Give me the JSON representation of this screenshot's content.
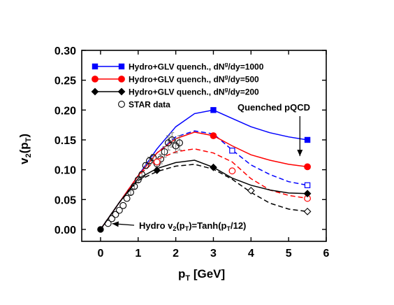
{
  "chart_data": {
    "type": "line",
    "xlabel": "p",
    "xlabel_sub": "T",
    "xlabel_unit": " [GeV]",
    "ylabel": "v",
    "ylabel_sub1": "2",
    "ylabel_mid": "(p",
    "ylabel_sub2": "T",
    "ylabel_end": ")",
    "xlim": [
      -0.5,
      6
    ],
    "ylim": [
      -0.02,
      0.3
    ],
    "xticks": [
      0,
      1,
      2,
      3,
      4,
      5,
      6
    ],
    "xtick_labels": [
      "0",
      "1",
      "2",
      "3",
      "4",
      "5",
      "6"
    ],
    "yticks": [
      0.0,
      0.05,
      0.1,
      0.15,
      0.2,
      0.25,
      0.3
    ],
    "ytick_labels": [
      "0.00",
      "0.05",
      "0.10",
      "0.15",
      "0.20",
      "0.25",
      "0.30"
    ],
    "grid": false,
    "legend_placement": "top-left",
    "legend": [
      {
        "pre": "Hydro+GLV quench., dN",
        "sup": "g",
        "post": "/dy=1000",
        "color": "#0000ff",
        "marker": "square"
      },
      {
        "pre": "Hydro+GLV quench., dN",
        "sup": "g",
        "post": "/dy=500",
        "color": "#ff0000",
        "marker": "circle"
      },
      {
        "pre": "Hydro+GLV quench., dN",
        "sup": "g",
        "post": "/dy=200",
        "color": "#000000",
        "marker": "diamond"
      },
      {
        "pre": "STAR data",
        "sup": "",
        "post": "",
        "color": "#000000",
        "marker": "open-circle"
      }
    ],
    "series": [
      {
        "key": "dNg1000",
        "color": "#0000ff",
        "marker": "square",
        "solid": {
          "x": [
            0,
            0.5,
            1.0,
            1.5,
            2.0,
            2.5,
            3.0,
            3.5,
            4.0,
            4.5,
            5.0,
            5.5
          ],
          "y": [
            0,
            0.045,
            0.09,
            0.135,
            0.172,
            0.194,
            0.2,
            0.186,
            0.172,
            0.162,
            0.155,
            0.15
          ]
        },
        "solid_markers": {
          "x": [
            3.0,
            5.5
          ],
          "y": [
            0.2,
            0.15
          ]
        },
        "dashed": {
          "x": [
            0,
            0.5,
            1.0,
            1.5,
            2.0,
            2.5,
            3.0,
            3.5,
            4.0,
            4.5,
            5.0,
            5.5
          ],
          "y": [
            0,
            0.045,
            0.09,
            0.128,
            0.155,
            0.165,
            0.16,
            0.133,
            0.108,
            0.092,
            0.08,
            0.074
          ]
        },
        "open_markers": {
          "x": [
            3.5,
            5.5
          ],
          "y": [
            0.132,
            0.074
          ]
        }
      },
      {
        "key": "dNg500",
        "color": "#ff0000",
        "marker": "circle",
        "solid": {
          "x": [
            0,
            0.5,
            1.0,
            1.5,
            2.0,
            2.5,
            3.0,
            3.5,
            4.0,
            4.5,
            5.0,
            5.5
          ],
          "y": [
            0,
            0.045,
            0.09,
            0.128,
            0.152,
            0.163,
            0.157,
            0.14,
            0.125,
            0.116,
            0.109,
            0.105
          ]
        },
        "solid_markers": {
          "x": [
            3.0,
            5.5
          ],
          "y": [
            0.157,
            0.105
          ]
        },
        "dashed": {
          "x": [
            0,
            0.5,
            1.0,
            1.5,
            2.0,
            2.5,
            3.0,
            3.5,
            4.0,
            4.5,
            5.0,
            5.5
          ],
          "y": [
            0,
            0.045,
            0.09,
            0.117,
            0.13,
            0.135,
            0.128,
            0.113,
            0.085,
            0.066,
            0.057,
            0.052
          ]
        },
        "open_markers": {
          "x": [
            1.5,
            3.5,
            5.5
          ],
          "y": [
            0.113,
            0.098,
            0.052
          ]
        }
      },
      {
        "key": "dNg200",
        "color": "#000000",
        "marker": "diamond",
        "solid": {
          "x": [
            0,
            0.5,
            1.0,
            1.5,
            2.0,
            2.5,
            3.0,
            3.5,
            4.0,
            4.5,
            5.0,
            5.5
          ],
          "y": [
            0,
            0.045,
            0.085,
            0.102,
            0.112,
            0.116,
            0.104,
            0.086,
            0.074,
            0.066,
            0.061,
            0.06
          ]
        },
        "solid_markers": {
          "x": [
            1.5,
            3.0,
            5.5
          ],
          "y": [
            0.099,
            0.104,
            0.06
          ]
        },
        "dashed": {
          "x": [
            0,
            0.5,
            1.0,
            1.5,
            2.0,
            2.5,
            3.0,
            3.5,
            4.0,
            4.5,
            5.0,
            5.5
          ],
          "y": [
            0,
            0.045,
            0.082,
            0.097,
            0.106,
            0.109,
            0.101,
            0.084,
            0.062,
            0.044,
            0.034,
            0.03
          ]
        },
        "open_markers": {
          "x": [
            4.0,
            5.5
          ],
          "y": [
            0.065,
            0.03
          ]
        }
      },
      {
        "key": "hydro",
        "color": "#000000",
        "marker": "filled-circle",
        "points": {
          "x": [
            0
          ],
          "y": [
            0
          ]
        }
      }
    ],
    "star_data": {
      "x": [
        0.2,
        0.3,
        0.4,
        0.5,
        0.6,
        0.7,
        0.8,
        0.9,
        1.0,
        1.1,
        1.2,
        1.3,
        1.4,
        1.5,
        1.6,
        1.7,
        1.8,
        1.9,
        2.0,
        2.1
      ],
      "y": [
        0.01,
        0.018,
        0.025,
        0.032,
        0.04,
        0.052,
        0.062,
        0.072,
        0.083,
        0.092,
        0.107,
        0.115,
        0.12,
        0.11,
        0.118,
        0.13,
        0.145,
        0.15,
        0.14,
        0.145
      ],
      "err": [
        0.002,
        0.002,
        0.003,
        0.003,
        0.003,
        0.003,
        0.004,
        0.004,
        0.004,
        0.005,
        0.005,
        0.006,
        0.006,
        0.007,
        0.008,
        0.009,
        0.012,
        0.012,
        0.012,
        0.012
      ]
    },
    "annotations": {
      "hydro_pre": "Hydro v",
      "hydro_sub1": "2",
      "hydro_mid": "(p",
      "hydro_sub2": "T",
      "hydro_post": ")=Tanh(p",
      "hydro_sub3": "T",
      "hydro_end": "/12)",
      "hydro_arrow_target": {
        "x": 0.2,
        "y": 0.012
      },
      "quenched": "Quenched pQCD",
      "quenched_arrow_target": {
        "x": 5.3,
        "y": 0.158
      }
    }
  }
}
